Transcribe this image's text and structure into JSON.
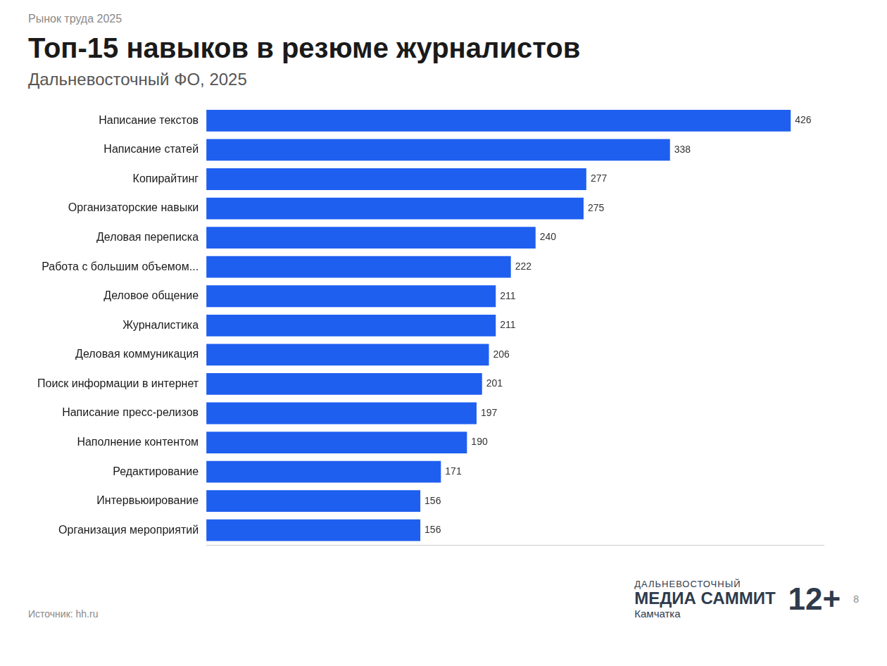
{
  "kicker": "Рынок труда 2025",
  "source": "Источник: hh.ru",
  "page_number": 8,
  "branding": {
    "lines": [
      "ДАЛЬНЕВОСТОЧНЫЙ",
      "МЕДИА САММИТ",
      "Камчатка"
    ],
    "age": "12+"
  },
  "chart_data": {
    "type": "bar",
    "orientation": "horizontal",
    "title": "Топ-15 навыков в резюме журналистов",
    "subtitle": "Дальневосточный ФО, 2025",
    "categories": [
      "Написание текстов",
      "Написание статей",
      "Копирайтинг",
      "Организаторские навыки",
      "Деловая переписка",
      "Работа с большим объемом...",
      "Деловое общение",
      "Журналистика",
      "Деловая коммуникация",
      "Поиск информации в интернет",
      "Написание пресс-релизов",
      "Наполнение контентом",
      "Редактирование",
      "Интервьюирование",
      "Организация мероприятий"
    ],
    "values": [
      426,
      338,
      277,
      275,
      240,
      222,
      211,
      211,
      206,
      201,
      197,
      190,
      171,
      156,
      156
    ],
    "color": "#1f5ff0",
    "xlim": [
      0,
      450
    ],
    "grid": false,
    "data_labels": true,
    "tick_labels": "y"
  }
}
